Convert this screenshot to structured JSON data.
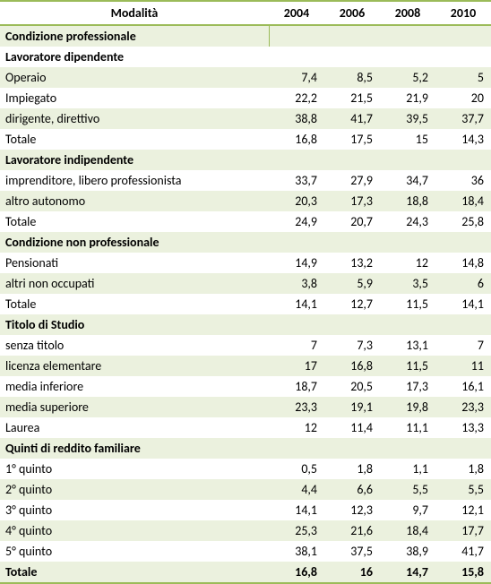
{
  "table": {
    "background_color": "#ffffff",
    "stripe_color": "#ebf1de",
    "border_color": "#9bbb59",
    "text_color": "#000000",
    "font_size": 14,
    "columns": [
      "Modalità",
      "2004",
      "2006",
      "2008",
      "2010"
    ],
    "rows": [
      {
        "type": "section",
        "label": "Condizione professionale",
        "values": [
          "",
          "",
          "",
          ""
        ]
      },
      {
        "type": "subsection",
        "label": "Lavoratore dipendente",
        "values": [
          "",
          "",
          "",
          ""
        ]
      },
      {
        "type": "data",
        "label": "Operaio",
        "values": [
          "7,4",
          "8,5",
          "5,2",
          "5"
        ]
      },
      {
        "type": "data",
        "label": "Impiegato",
        "values": [
          "22,2",
          "21,5",
          "21,9",
          "20"
        ]
      },
      {
        "type": "data",
        "label": "dirigente, direttivo",
        "values": [
          "38,8",
          "41,7",
          "39,5",
          "37,7"
        ]
      },
      {
        "type": "data",
        "label": "Totale",
        "values": [
          "16,8",
          "17,5",
          "15",
          "14,3"
        ]
      },
      {
        "type": "subsection",
        "label": "Lavoratore indipendente",
        "values": [
          "",
          "",
          "",
          ""
        ]
      },
      {
        "type": "data",
        "label": "imprenditore, libero professionista",
        "values": [
          "33,7",
          "27,9",
          "34,7",
          "36"
        ]
      },
      {
        "type": "data",
        "label": "altro autonomo",
        "values": [
          "20,3",
          "17,3",
          "18,8",
          "18,4"
        ]
      },
      {
        "type": "data",
        "label": "Totale",
        "values": [
          "24,9",
          "20,7",
          "24,3",
          "25,8"
        ]
      },
      {
        "type": "section",
        "label": "Condizione non professionale",
        "values": [
          "",
          "",
          "",
          ""
        ]
      },
      {
        "type": "data",
        "label": "Pensionati",
        "values": [
          "14,9",
          "13,2",
          "12",
          "14,8"
        ]
      },
      {
        "type": "data",
        "label": "altri non occupati",
        "values": [
          "3,8",
          "5,9",
          "3,5",
          "6"
        ]
      },
      {
        "type": "data",
        "label": "Totale",
        "values": [
          "14,1",
          "12,7",
          "11,5",
          "14,1"
        ]
      },
      {
        "type": "section",
        "label": "Titolo di Studio",
        "values": [
          "",
          "",
          "",
          ""
        ]
      },
      {
        "type": "data",
        "label": "senza titolo",
        "values": [
          "7",
          "7,3",
          "13,1",
          "7"
        ]
      },
      {
        "type": "data",
        "label": "licenza elementare",
        "values": [
          "17",
          "16,8",
          "11,5",
          "11"
        ]
      },
      {
        "type": "data",
        "label": "media inferiore",
        "values": [
          "18,7",
          "20,5",
          "17,3",
          "16,1"
        ]
      },
      {
        "type": "data",
        "label": "media superiore",
        "values": [
          "23,3",
          "19,1",
          "19,8",
          "23,3"
        ]
      },
      {
        "type": "data",
        "label": "Laurea",
        "values": [
          "12",
          "11,4",
          "11,1",
          "13,3"
        ]
      },
      {
        "type": "section",
        "label": "Quinti di reddito familiare",
        "values": [
          "",
          "",
          "",
          ""
        ]
      },
      {
        "type": "data",
        "label": "1° quinto",
        "values": [
          "0,5",
          "1,8",
          "1,1",
          "1,8"
        ]
      },
      {
        "type": "data",
        "label": "2° quinto",
        "values": [
          "4,4",
          "6,6",
          "5,5",
          "5,5"
        ]
      },
      {
        "type": "data",
        "label": "3° quinto",
        "values": [
          "14,1",
          "12,3",
          "9,7",
          "12,1"
        ]
      },
      {
        "type": "data",
        "label": "4° quinto",
        "values": [
          "25,3",
          "21,6",
          "18,4",
          "17,7"
        ]
      },
      {
        "type": "data",
        "label": "5° quinto",
        "values": [
          "38,1",
          "37,5",
          "38,9",
          "41,7"
        ]
      },
      {
        "type": "grand-total",
        "label": "Totale",
        "values": [
          "16,8",
          "16",
          "14,7",
          "15,8"
        ]
      }
    ]
  }
}
